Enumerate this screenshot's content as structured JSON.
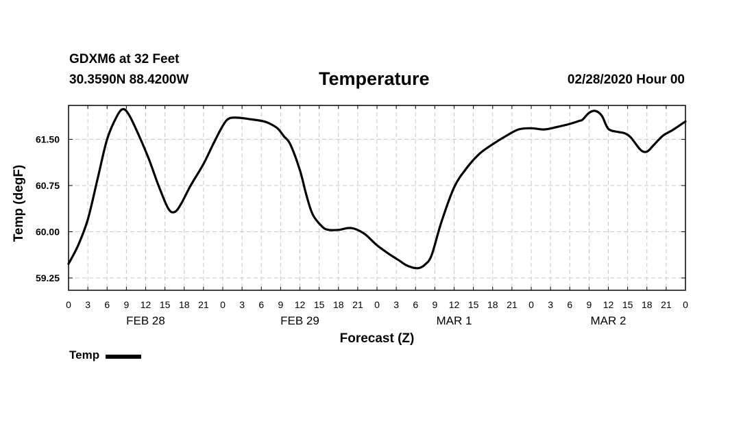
{
  "header": {
    "station": "GDXM6 at 32 Feet",
    "latlon": "30.3590N 88.4200W",
    "datetime": "02/28/2020 Hour 00"
  },
  "legend": {
    "label": "Temp"
  },
  "chart_data": {
    "type": "line",
    "title": "Temperature",
    "xlabel": "Forecast (Z)",
    "ylabel": "Temp (degF)",
    "ylim": [
      59.05,
      62.05
    ],
    "yticks": [
      "59.25",
      "60.00",
      "60.75",
      "61.50"
    ],
    "grid": true,
    "xlim": [
      0,
      96
    ],
    "x_tick_step_hours": 3,
    "x_tick_labels": [
      "0",
      "3",
      "6",
      "9",
      "12",
      "15",
      "18",
      "21",
      "0",
      "3",
      "6",
      "9",
      "12",
      "15",
      "18",
      "21",
      "0",
      "3",
      "6",
      "9",
      "12",
      "15",
      "18",
      "21",
      "0",
      "3",
      "6",
      "9",
      "12",
      "15",
      "18",
      "21",
      "0"
    ],
    "days": [
      {
        "label": "FEB 28",
        "hour": 12
      },
      {
        "label": "FEB 29",
        "hour": 36
      },
      {
        "label": "MAR 1",
        "hour": 60
      },
      {
        "label": "MAR 2",
        "hour": 84
      }
    ],
    "line_color": "#000000",
    "series": [
      {
        "name": "Temp",
        "x": [
          0,
          1.5,
          3,
          4.5,
          6,
          7.5,
          8.5,
          9.5,
          11,
          12.5,
          14,
          15.5,
          16.5,
          17.5,
          19,
          21,
          22.5,
          24,
          25,
          26.5,
          28,
          30,
          31,
          32.5,
          33.5,
          34.5,
          36,
          37,
          38,
          39.5,
          40.5,
          42,
          44,
          46,
          48,
          50,
          51.5,
          52.5,
          53.5,
          54.5,
          55.5,
          56.5,
          58,
          60,
          62,
          64,
          66,
          68,
          70,
          72,
          74,
          76,
          78,
          79.5,
          80,
          81,
          82,
          83,
          84,
          85.5,
          86.5,
          87.5,
          89,
          90,
          91,
          92.5,
          94,
          96
        ],
        "y": [
          59.48,
          59.78,
          60.2,
          60.85,
          61.5,
          61.87,
          61.99,
          61.88,
          61.55,
          61.18,
          60.75,
          60.38,
          60.32,
          60.45,
          60.75,
          61.1,
          61.42,
          61.72,
          61.84,
          61.85,
          61.83,
          61.8,
          61.77,
          61.68,
          61.55,
          61.42,
          61.0,
          60.6,
          60.28,
          60.08,
          60.03,
          60.03,
          60.06,
          59.97,
          59.78,
          59.63,
          59.53,
          59.46,
          59.42,
          59.41,
          59.47,
          59.62,
          60.15,
          60.72,
          61.04,
          61.27,
          61.42,
          61.55,
          61.66,
          61.68,
          61.66,
          61.7,
          61.75,
          61.8,
          61.82,
          61.93,
          61.96,
          61.88,
          61.67,
          61.62,
          61.6,
          61.53,
          61.33,
          61.3,
          61.4,
          61.56,
          61.65,
          61.79
        ]
      }
    ]
  }
}
